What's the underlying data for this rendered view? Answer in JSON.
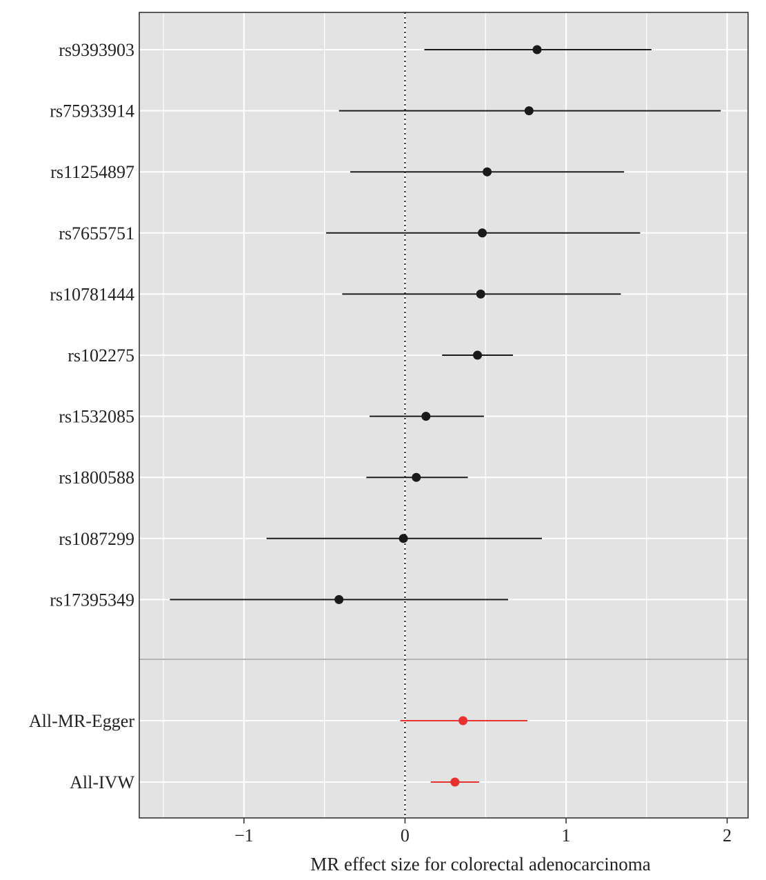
{
  "chart_data": {
    "type": "forest",
    "title": "",
    "xlabel": "MR effect size for colorectal adenocarcinoma",
    "ylabel": "",
    "xlim": [
      -1.65,
      2.13
    ],
    "xticks": [
      -1,
      0,
      1,
      2
    ],
    "xtick_labels": [
      "−1",
      "0",
      "1",
      "2"
    ],
    "grid": true,
    "reference_line": 0,
    "colors": {
      "panel_background": "#e3e3e3",
      "grid": "#ffffff",
      "snp": "#1a1a1a",
      "summary": "#e8302f",
      "separator": "#b3b3b3"
    },
    "rows": [
      {
        "label": "rs9393903",
        "estimate": 0.82,
        "lower": 0.12,
        "upper": 1.53,
        "group": "snp"
      },
      {
        "label": "rs75933914",
        "estimate": 0.77,
        "lower": -0.41,
        "upper": 1.96,
        "group": "snp"
      },
      {
        "label": "rs11254897",
        "estimate": 0.51,
        "lower": -0.34,
        "upper": 1.36,
        "group": "snp"
      },
      {
        "label": "rs7655751",
        "estimate": 0.48,
        "lower": -0.49,
        "upper": 1.46,
        "group": "snp"
      },
      {
        "label": "rs10781444",
        "estimate": 0.47,
        "lower": -0.39,
        "upper": 1.34,
        "group": "snp"
      },
      {
        "label": "rs102275",
        "estimate": 0.45,
        "lower": 0.23,
        "upper": 0.67,
        "group": "snp"
      },
      {
        "label": "rs1532085",
        "estimate": 0.13,
        "lower": -0.22,
        "upper": 0.49,
        "group": "snp"
      },
      {
        "label": "rs1800588",
        "estimate": 0.07,
        "lower": -0.24,
        "upper": 0.39,
        "group": "snp"
      },
      {
        "label": "rs1087299",
        "estimate": -0.01,
        "lower": -0.86,
        "upper": 0.85,
        "group": "snp"
      },
      {
        "label": "rs17395349",
        "estimate": -0.41,
        "lower": -1.46,
        "upper": 0.64,
        "group": "snp"
      },
      {
        "label": "All-MR-Egger",
        "estimate": 0.36,
        "lower": -0.03,
        "upper": 0.76,
        "group": "summary"
      },
      {
        "label": "All-IVW",
        "estimate": 0.31,
        "lower": 0.16,
        "upper": 0.46,
        "group": "summary"
      }
    ]
  }
}
